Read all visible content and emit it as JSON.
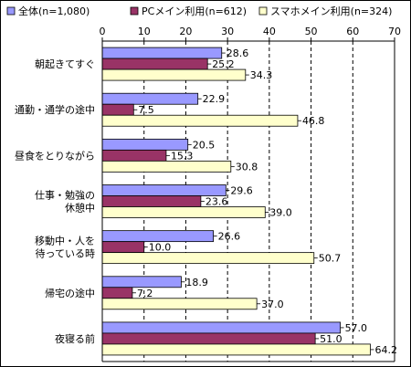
{
  "chart_data": {
    "type": "bar",
    "orientation": "horizontal",
    "xlim": [
      0,
      70
    ],
    "ticks": [
      0,
      10,
      20,
      30,
      40,
      50,
      60,
      70
    ],
    "grid": "vertical dashed",
    "legend_position": "top",
    "categories": [
      [
        "朝起きてすぐ"
      ],
      [
        "通勤・通学の途中"
      ],
      [
        "昼食をとりながら"
      ],
      [
        "仕事・勉強の",
        "休憩中"
      ],
      [
        "移動中・人を",
        "待っている時"
      ],
      [
        "帰宅の途中"
      ],
      [
        "夜寝る前"
      ]
    ],
    "series": [
      {
        "name": "全体(n=1,080)",
        "color": "#9999ff",
        "values": [
          28.6,
          22.9,
          20.5,
          29.6,
          26.6,
          18.9,
          57.0
        ]
      },
      {
        "name": "PCメイン利用(n=612)",
        "color": "#993366",
        "values": [
          25.2,
          7.5,
          15.3,
          23.6,
          10.0,
          7.2,
          51.0
        ]
      },
      {
        "name": "スマホメイン利用(n=324)",
        "color": "#ffffcc",
        "values": [
          34.3,
          46.8,
          30.8,
          39.0,
          50.7,
          37.0,
          64.2
        ]
      }
    ]
  }
}
